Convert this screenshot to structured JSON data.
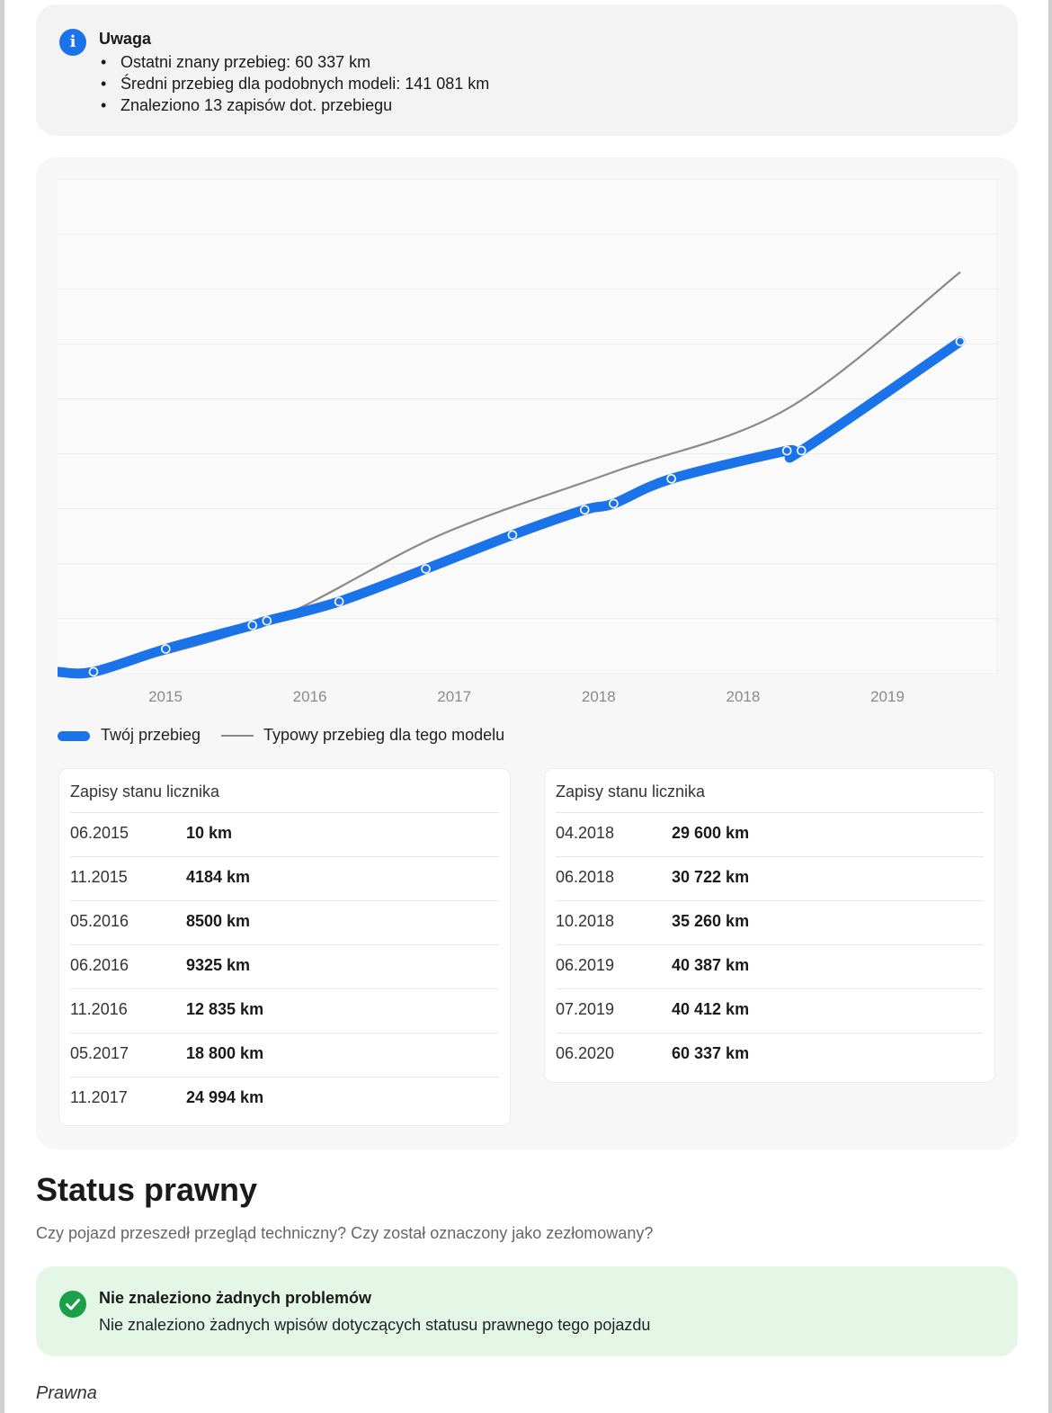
{
  "notice": {
    "title": "Uwaga",
    "items": [
      "Ostatni znany przebieg: 60 337 km",
      "Średni przebieg dla podobnych modeli: 141 081 km",
      "Znaleziono 13 zapisów dot. przebiegu"
    ]
  },
  "chart_data": {
    "type": "line",
    "x_tick_labels": [
      "2015",
      "2016",
      "2017",
      "2018",
      "2018",
      "2019"
    ],
    "series": [
      {
        "name": "Twój przebieg",
        "color": "#1a73e8",
        "points": [
          {
            "x": "06.2015",
            "y": 10
          },
          {
            "x": "11.2015",
            "y": 4184
          },
          {
            "x": "05.2016",
            "y": 8500
          },
          {
            "x": "06.2016",
            "y": 9325
          },
          {
            "x": "11.2016",
            "y": 12835
          },
          {
            "x": "05.2017",
            "y": 18800
          },
          {
            "x": "11.2017",
            "y": 24994
          },
          {
            "x": "04.2018",
            "y": 29600
          },
          {
            "x": "06.2018",
            "y": 30722
          },
          {
            "x": "10.2018",
            "y": 35260
          },
          {
            "x": "06.2019",
            "y": 40387
          },
          {
            "x": "07.2019",
            "y": 40412
          },
          {
            "x": "06.2020",
            "y": 60337
          }
        ]
      },
      {
        "name": "Typowy przebieg dla tego modelu",
        "color": "#8a8a8a",
        "points": [
          {
            "x": "06.2015",
            "y": 0
          },
          {
            "x": "06.2016",
            "y": 9000
          },
          {
            "x": "06.2017",
            "y": 25000
          },
          {
            "x": "06.2018",
            "y": 36500
          },
          {
            "x": "06.2019",
            "y": 48000
          },
          {
            "x": "06.2020",
            "y": 73000
          }
        ]
      }
    ],
    "ylim": [
      0,
      90000
    ],
    "grid": true,
    "legend_position": "bottom-left"
  },
  "legend": {
    "yours": "Twój przebieg",
    "typical": "Typowy przebieg dla tego modelu"
  },
  "records_left": {
    "title": "Zapisy stanu licznika",
    "rows": [
      {
        "date": "06.2015",
        "km": "10 km"
      },
      {
        "date": "11.2015",
        "km": "4184 km"
      },
      {
        "date": "05.2016",
        "km": "8500 km"
      },
      {
        "date": "06.2016",
        "km": "9325 km"
      },
      {
        "date": "11.2016",
        "km": "12 835 km"
      },
      {
        "date": "05.2017",
        "km": "18 800 km"
      },
      {
        "date": "11.2017",
        "km": "24 994 km"
      }
    ]
  },
  "records_right": {
    "title": "Zapisy stanu licznika",
    "rows": [
      {
        "date": "04.2018",
        "km": "29 600 km"
      },
      {
        "date": "06.2018",
        "km": "30 722 km"
      },
      {
        "date": "10.2018",
        "km": "35 260 km"
      },
      {
        "date": "06.2019",
        "km": "40 387 km"
      },
      {
        "date": "07.2019",
        "km": "40 412 km"
      },
      {
        "date": "06.2020",
        "km": "60 337 km"
      }
    ]
  },
  "status": {
    "title": "Status prawny",
    "subtitle": "Czy pojazd przeszedł przegląd techniczny? Czy został oznaczony jako zezłomowany?",
    "box_title": "Nie znaleziono żadnych problemów",
    "box_text": "Nie znaleziono żadnych wpisów dotyczących statusu prawnego tego pojazdu"
  },
  "footer": {
    "watermark": "Prawna"
  }
}
